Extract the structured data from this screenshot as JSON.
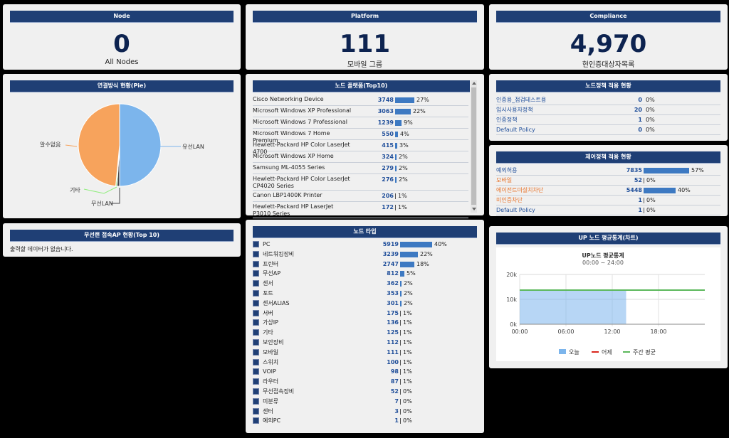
{
  "node": {
    "title": "Node",
    "value": "0",
    "label": "All Nodes"
  },
  "platform": {
    "title": "Platform",
    "value": "111",
    "label": "모바일 그룹"
  },
  "compliance": {
    "title": "Compliance",
    "value": "4,970",
    "label": "현인증대상자목록"
  },
  "pie": {
    "title": "연결방식 현황(Pie)",
    "labels": {
      "wired": "유선LAN",
      "unknown": "알수없음",
      "other": "기타",
      "wireless": "무선LAN"
    },
    "colors": {
      "wired": "#7cb5ec",
      "unknown": "#f7a35c",
      "other": "#90ed7d",
      "wireless": "#434348"
    },
    "fractions": {
      "wired": 0.5,
      "wireless": 0.01,
      "other": 0.005,
      "unknown": 0.485
    }
  },
  "ap": {
    "title": "무선랜 접속AP 현황(Top 10)",
    "empty": "출력할 데이터가 없습니다."
  },
  "platformTop": {
    "title": "노드 플랫폼(Top10)",
    "items": [
      {
        "name": "Cisco Networking Device",
        "value": "3748",
        "pct": "27%",
        "frac": 0.27
      },
      {
        "name": "Microsoft Windows XP Professional",
        "value": "3063",
        "pct": "22%",
        "frac": 0.22
      },
      {
        "name": "Microsoft Windows 7 Professional",
        "value": "1239",
        "pct": "9%",
        "frac": 0.09
      },
      {
        "name": "Microsoft Windows 7 Home Premium",
        "value": "550",
        "pct": "4%",
        "frac": 0.04
      },
      {
        "name": "Hewlett-Packard HP Color LaserJet 4700",
        "value": "415",
        "pct": "3%",
        "frac": 0.03
      },
      {
        "name": "Microsoft Windows XP Home",
        "value": "324",
        "pct": "2%",
        "frac": 0.02
      },
      {
        "name": "Samsung ML-4055 Series",
        "value": "279",
        "pct": "2%",
        "frac": 0.02
      },
      {
        "name": "Hewlett-Packard HP Color LaserJet CP4020 Series",
        "value": "276",
        "pct": "2%",
        "frac": 0.02
      },
      {
        "name": "Canon LBP1400K Printer",
        "value": "206",
        "pct": "1%",
        "frac": 0.01
      },
      {
        "name": "Hewlett-Packard HP LaserJet P3010 Series",
        "value": "172",
        "pct": "1%",
        "frac": 0.01
      }
    ]
  },
  "nodeType": {
    "title": "노드 타입",
    "items": [
      {
        "name": "PC",
        "value": "5919",
        "pct": "40%",
        "frac": 0.4
      },
      {
        "name": "네트워킹장비",
        "value": "3239",
        "pct": "22%",
        "frac": 0.22
      },
      {
        "name": "프린터",
        "value": "2747",
        "pct": "18%",
        "frac": 0.18
      },
      {
        "name": "무선AP",
        "value": "812",
        "pct": "5%",
        "frac": 0.05
      },
      {
        "name": "센서",
        "value": "362",
        "pct": "2%",
        "frac": 0.02
      },
      {
        "name": "포트",
        "value": "353",
        "pct": "2%",
        "frac": 0.02
      },
      {
        "name": "센서ALIAS",
        "value": "301",
        "pct": "2%",
        "frac": 0.02
      },
      {
        "name": "서버",
        "value": "175",
        "pct": "1%",
        "frac": 0.01
      },
      {
        "name": "가상IP",
        "value": "136",
        "pct": "1%",
        "frac": 0.01
      },
      {
        "name": "기타",
        "value": "125",
        "pct": "1%",
        "frac": 0.01
      },
      {
        "name": "보안장비",
        "value": "112",
        "pct": "1%",
        "frac": 0.01
      },
      {
        "name": "모바일",
        "value": "111",
        "pct": "1%",
        "frac": 0.01
      },
      {
        "name": "스위치",
        "value": "100",
        "pct": "1%",
        "frac": 0.01
      },
      {
        "name": "VOIP",
        "value": "98",
        "pct": "1%",
        "frac": 0.01
      },
      {
        "name": "라우터",
        "value": "87",
        "pct": "1%",
        "frac": 0.01
      },
      {
        "name": "무선접속장비",
        "value": "52",
        "pct": "0%",
        "frac": 0
      },
      {
        "name": "미분류",
        "value": "7",
        "pct": "0%",
        "frac": 0
      },
      {
        "name": "센터",
        "value": "3",
        "pct": "0%",
        "frac": 0
      },
      {
        "name": "예외PC",
        "value": "1",
        "pct": "0%",
        "frac": 0
      }
    ]
  },
  "nodePolicy": {
    "title": "노드정책 적용 현황",
    "items": [
      {
        "name": "인증용_점검테스트용",
        "value": "0",
        "pct": "0%"
      },
      {
        "name": "임시사용자정책",
        "value": "20",
        "pct": "0%"
      },
      {
        "name": "인증정책",
        "value": "1",
        "pct": "0%"
      },
      {
        "name": "Default Policy",
        "value": "0",
        "pct": "0%"
      }
    ]
  },
  "controlPolicy": {
    "title": "제어정책 적용 현황",
    "items": [
      {
        "name": "예외허용",
        "value": "7835",
        "pct": "57%",
        "frac": 0.57,
        "color": "blue"
      },
      {
        "name": "모바일",
        "value": "52",
        "pct": "0%",
        "frac": 0,
        "color": "orange"
      },
      {
        "name": "에이전트미설치차단",
        "value": "5448",
        "pct": "40%",
        "frac": 0.4,
        "color": "orange"
      },
      {
        "name": "미인증차단",
        "value": "1",
        "pct": "0%",
        "frac": 0,
        "color": "orange"
      },
      {
        "name": "Default Policy",
        "value": "1",
        "pct": "0%",
        "frac": 0,
        "color": "blue"
      }
    ]
  },
  "chart_data": {
    "type": "area",
    "header": "UP 노드 평균통계(차트)",
    "title": "UP노드 평균통계",
    "subtitle": "00:00 ~ 24:00",
    "x_ticks": [
      "00:00",
      "06:00",
      "12:00",
      "18:00"
    ],
    "y_ticks": [
      "0k",
      "10k",
      "20k"
    ],
    "ylim": [
      0,
      20000
    ],
    "xlim": [
      0,
      24
    ],
    "series": [
      {
        "name": "오늘",
        "color": "#7cb5ec",
        "x": [
          0,
          13.8
        ],
        "values": [
          13700,
          13700
        ]
      },
      {
        "name": "어제",
        "color": "#d9261c",
        "x": [],
        "values": []
      },
      {
        "name": "주간 평균",
        "color": "#5cb85c",
        "x": [
          0,
          24
        ],
        "values": [
          13700,
          13700
        ]
      }
    ],
    "legend": "bottom"
  }
}
